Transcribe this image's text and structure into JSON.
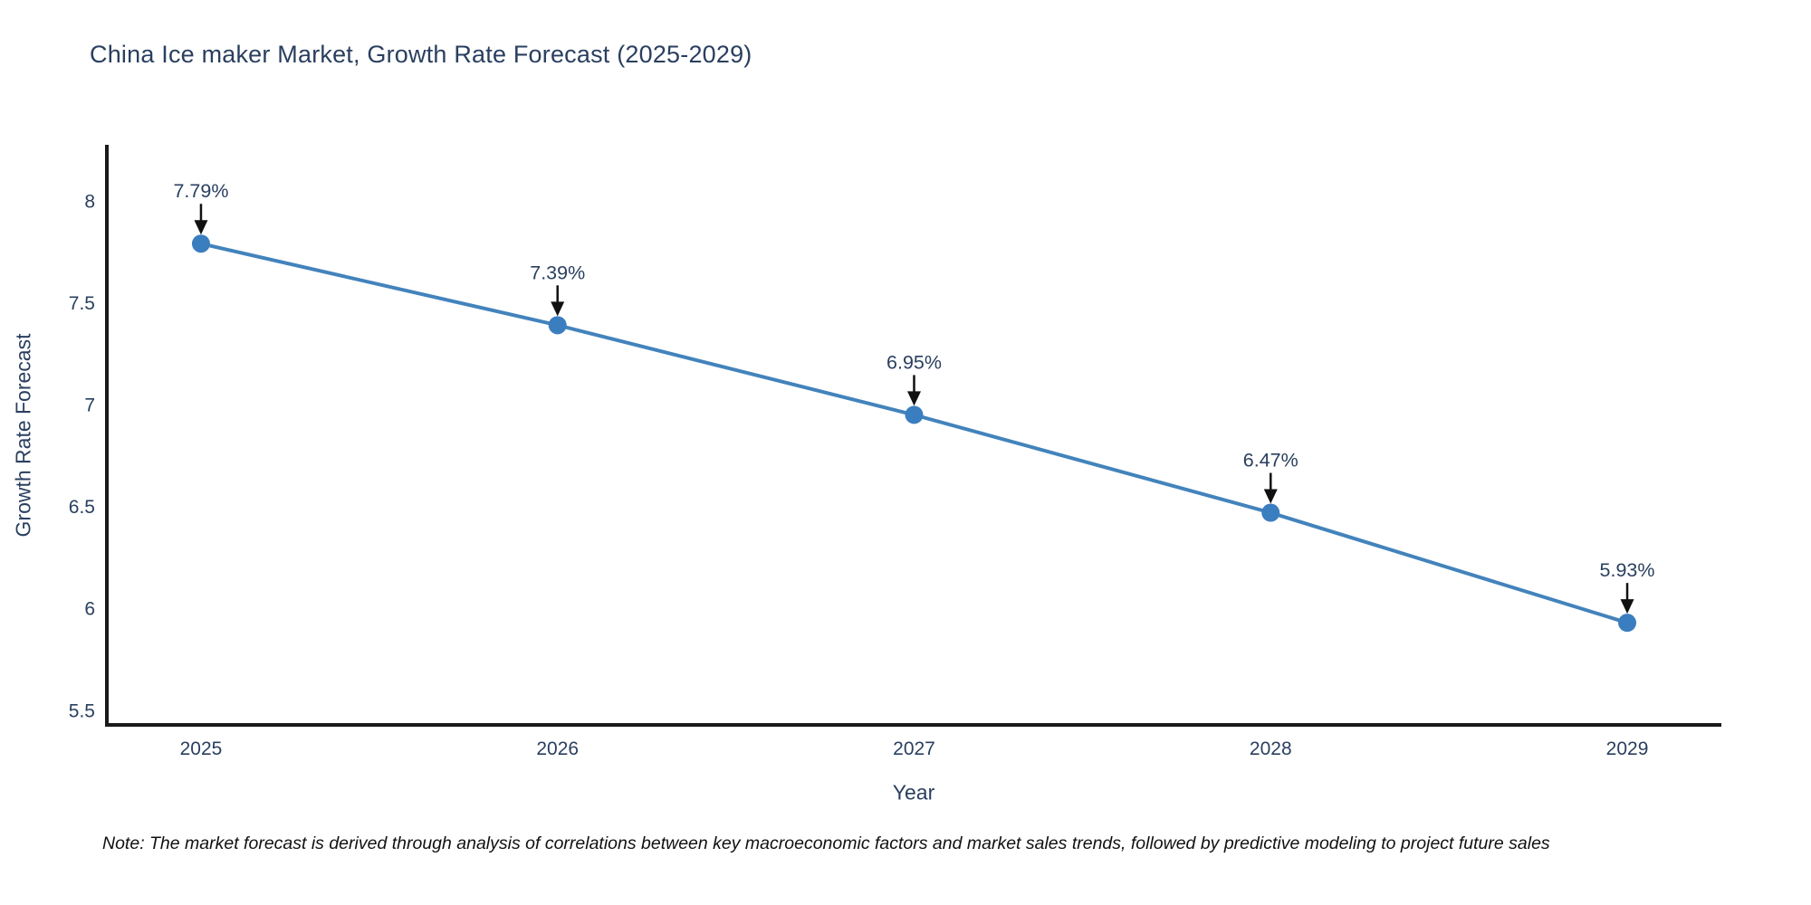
{
  "page": {
    "background": "#ffffff"
  },
  "chart_data": {
    "type": "line",
    "title": "China Ice maker Market, Growth Rate Forecast (2025-2029)",
    "xlabel": "Year",
    "ylabel": "Growth Rate Forecast",
    "x": [
      2025,
      2026,
      2027,
      2028,
      2029
    ],
    "series": [
      {
        "name": "Growth Rate Forecast",
        "values": [
          7.79,
          7.39,
          6.95,
          6.47,
          5.93
        ],
        "point_labels": [
          "7.79%",
          "7.39%",
          "6.95%",
          "6.47%",
          "5.93%"
        ]
      }
    ],
    "xtick_labels": [
      "2025",
      "2026",
      "2027",
      "2028",
      "2029"
    ],
    "ytick_values": [
      8,
      7.5,
      7,
      6.5,
      6,
      5.5
    ],
    "ytick_labels": [
      "8",
      "7.5",
      "7",
      "6.5",
      "6",
      "5.5"
    ],
    "xlim": [
      2024.736,
      2029.264
    ],
    "ylim": [
      5.429,
      8.275
    ],
    "grid": false,
    "legend": false,
    "annotations_have_arrows": true,
    "colors": {
      "line": "#4383bc",
      "marker": "#3a7ebf",
      "axis": "#1a1a1a",
      "text": "#2a3f5f",
      "arrow": "#111111",
      "note_text": "#111111"
    }
  },
  "footnote": {
    "text": "Note: The market forecast is derived through analysis of correlations between key macroeconomic factors and market sales trends, followed by predictive modeling to project future sales"
  }
}
